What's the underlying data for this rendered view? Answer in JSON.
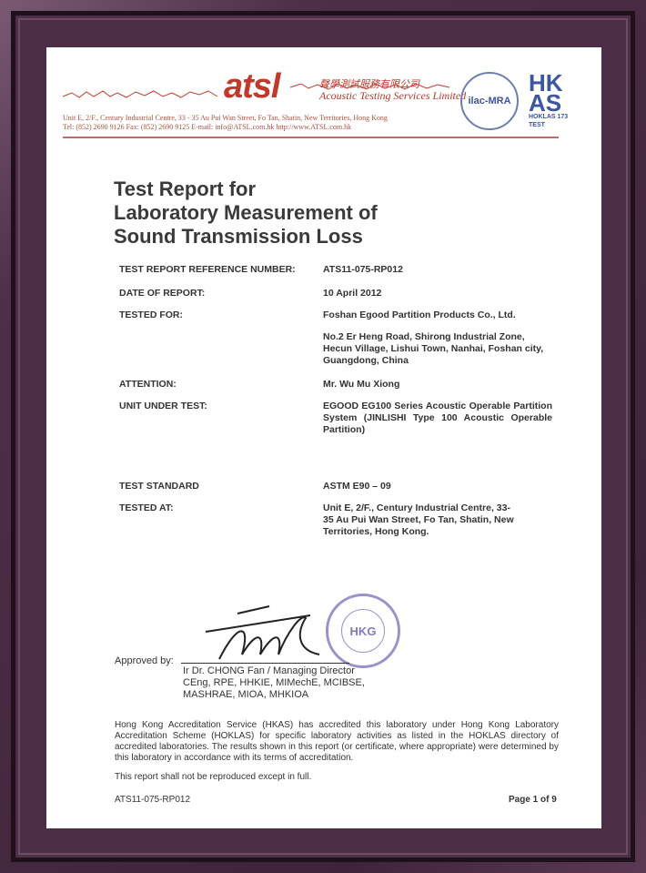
{
  "header": {
    "logo_text": "atsl",
    "company_chinese": "聲學測試服務有限公司",
    "company_name": "Acoustic Testing Services Limited",
    "address": "Unit E, 2/F., Century Industrial Centre, 33 - 35 Au Pui Wan Street, Fo Tan, Shatin, New Territories, Hong Kong",
    "contact": "Tel: (852) 2690 9126     Fax: (852) 2690 9125     E-mail: info@ATSL.com.hk     http://www.ATSL.com.hk",
    "ilac_text": "ilac-MRA",
    "hkas_text": "HK AS",
    "hokla_text": "HOKLAS 173 TEST"
  },
  "title": [
    "Test Report for",
    "Laboratory Measurement of",
    "Sound Transmission Loss"
  ],
  "fields": [
    {
      "label": "TEST REPORT REFERENCE NUMBER:",
      "value": "ATS11-075-RP012"
    },
    {
      "label": "DATE OF REPORT:",
      "value": "10 April 2012"
    },
    {
      "label": "TESTED FOR:",
      "value": "Foshan Egood Partition Products Co., Ltd."
    },
    {
      "label": "",
      "value": "No.2 Er Heng Road, Shirong Industrial Zone, Hecun Village, Lishui Town, Nanhai, Foshan city, Guangdong, China"
    },
    {
      "label": "ATTENTION:",
      "value": "Mr. Wu Mu Xiong"
    },
    {
      "label": "UNIT UNDER TEST:",
      "value": "EGOOD EG100 Series Acoustic Operable Partition System (JINLISHI Type 100 Acoustic Operable Partition)"
    },
    {
      "label": "TEST STANDARD",
      "value": "ASTM E90 – 09"
    },
    {
      "label": "TESTED AT:",
      "value": "Unit E, 2/F., Century Industrial Centre, 33-35 Au Pui Wan Street, Fo Tan, Shatin, New Territories, Hong Kong."
    }
  ],
  "approval": {
    "label": "Approved by:",
    "signer": [
      "Ir Dr. CHONG Fan / Managing Director",
      "CEng, RPE, HHKIE, MIMechE, MCIBSE,",
      "MASHRAE, MIOA, MHKIOA"
    ],
    "stamp_text": "Acoustic Testing Services Limited"
  },
  "accreditation": "Hong Kong Accreditation Service (HKAS) has accredited this laboratory under Hong Kong Laboratory Accreditation Scheme (HOKLAS) for specific laboratory activities as listed in the HOKLAS directory of accredited laboratories. The results shown in this report (or certificate, where appropriate) were determined by this laboratory in accordance with its terms of accreditation.",
  "reproduction": "This report shall not be reproduced except in full.",
  "footer": {
    "ref": "ATS11-075-RP012",
    "page": "Page 1 of 9"
  }
}
